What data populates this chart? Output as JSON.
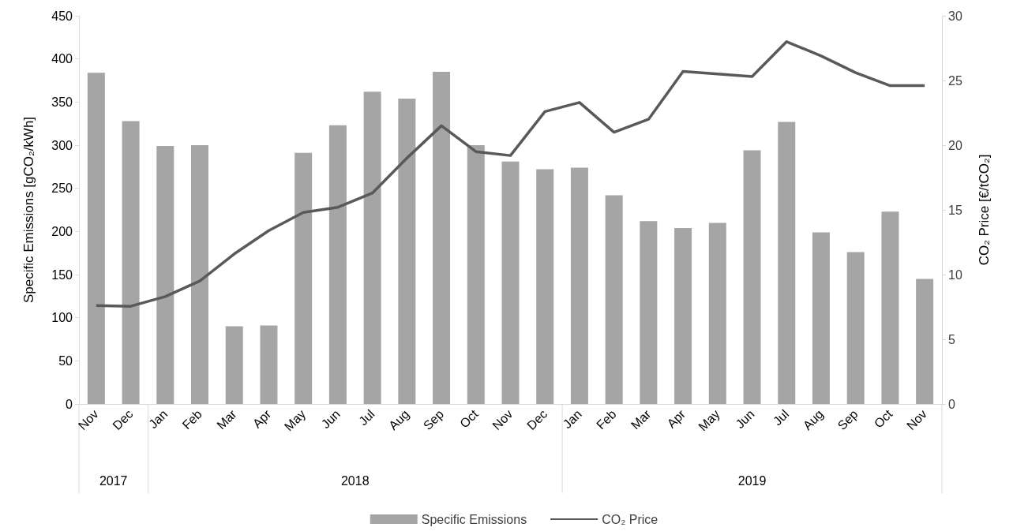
{
  "chart_data": {
    "type": "bar",
    "categories": [
      "Nov",
      "Dec",
      "Jan",
      "Feb",
      "Mar",
      "Apr",
      "May",
      "Jun",
      "Jul",
      "Aug",
      "Sep",
      "Oct",
      "Nov",
      "Dec",
      "Jan",
      "Feb",
      "Mar",
      "Apr",
      "May",
      "Jun",
      "Jul",
      "Aug",
      "Sep",
      "Oct",
      "Nov"
    ],
    "annotations": [
      "2017",
      "2018",
      "2019"
    ],
    "series": [
      {
        "name": "Specific Emissions",
        "color": "#a5a5a5",
        "values": [
          384,
          328,
          299,
          300,
          90,
          91,
          291,
          323,
          362,
          354,
          385,
          300,
          281,
          272,
          274,
          242,
          212,
          204,
          210,
          294,
          327,
          199,
          176,
          223,
          145
        ]
      },
      {
        "name": "CO₂ Price",
        "type": "line",
        "axis": "y2",
        "color": "#595959",
        "values": [
          7.6,
          7.55,
          8.3,
          9.5,
          11.6,
          13.4,
          14.8,
          15.2,
          16.3,
          19.0,
          21.5,
          19.5,
          19.2,
          22.6,
          23.3,
          21.0,
          22.0,
          25.7,
          25.5,
          25.3,
          28.0,
          26.9,
          25.6,
          24.6,
          24.6
        ]
      }
    ],
    "ylabel": "Specific Emissions [gCO₂/kWh]",
    "y2label": "CO₂ Price [€/tCO₂]",
    "ylim": [
      0,
      450
    ],
    "yticks": [
      0,
      50,
      100,
      150,
      200,
      250,
      300,
      350,
      400,
      450
    ],
    "y2lim": [
      0,
      30
    ],
    "y2ticks": [
      0,
      5,
      10,
      15,
      20,
      25,
      30
    ],
    "grid": false,
    "legend": "bottom",
    "marker": "none",
    "line_style": "solid"
  }
}
